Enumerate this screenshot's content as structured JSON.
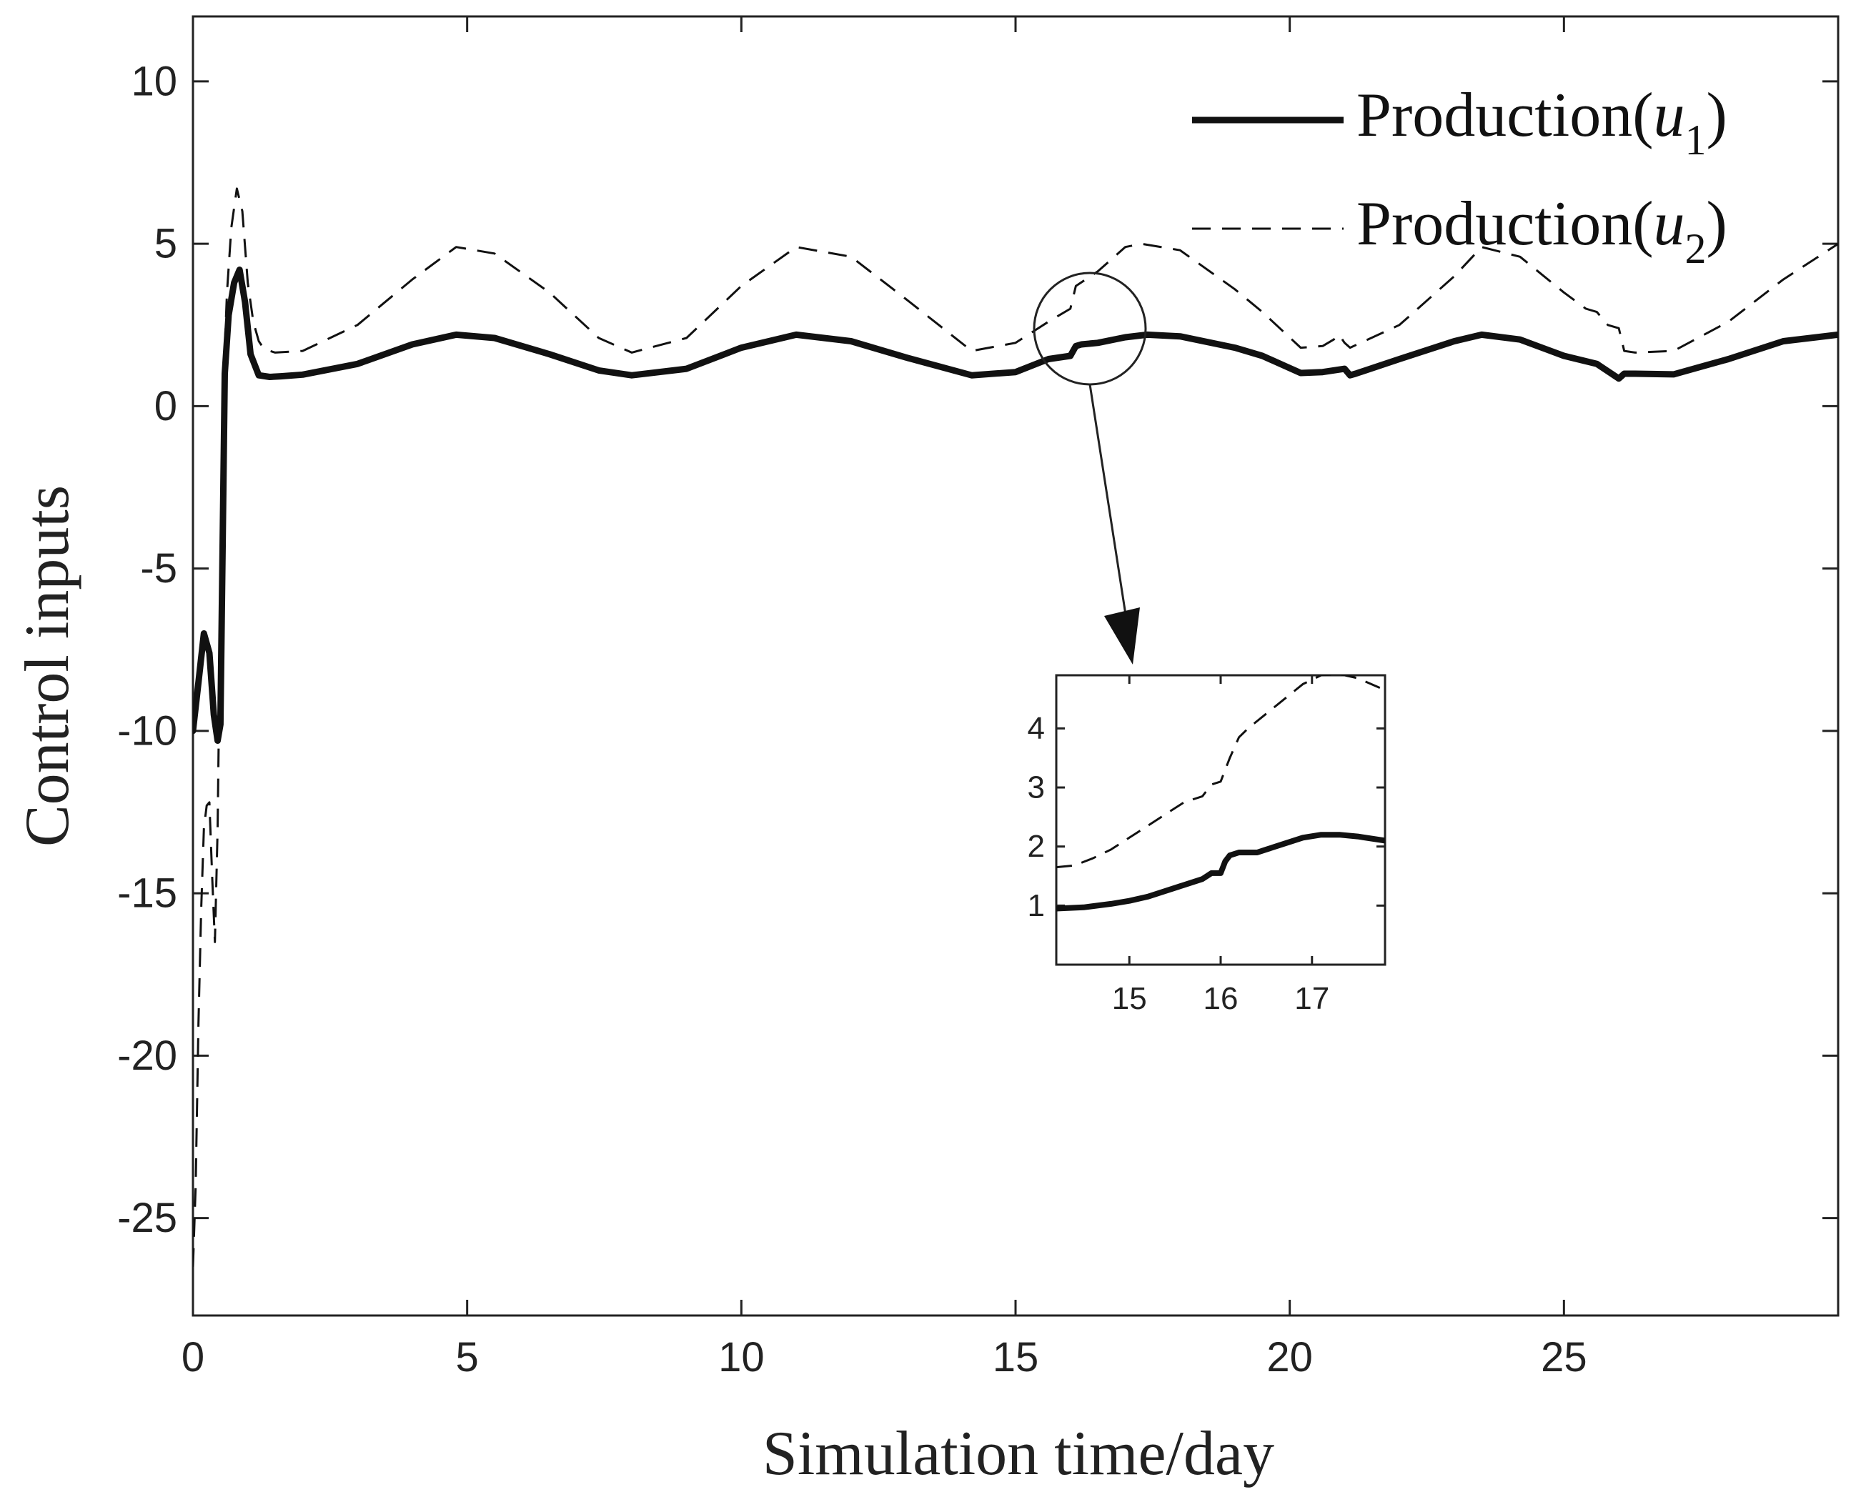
{
  "chart_data": {
    "type": "line",
    "xlabel": "Simulation time/day",
    "ylabel": "Control inputs",
    "xlim": [
      0,
      30
    ],
    "ylim": [
      -28,
      12
    ],
    "xticks": [
      0,
      5,
      10,
      15,
      20,
      25
    ],
    "xtick_labels": [
      "0",
      "5",
      "10",
      "15",
      "20",
      "25"
    ],
    "yticks": [
      10,
      5,
      0,
      -5,
      -10,
      -15,
      -20,
      -25
    ],
    "ytick_labels": [
      "10",
      "5",
      "0",
      "-5",
      "-10",
      "-15",
      "-20",
      "-25"
    ],
    "grid": false,
    "legend_position": "top-right",
    "series": [
      {
        "name": "Production(u1)",
        "legend_main": "Production(",
        "legend_var": "u",
        "legend_sub": "1",
        "legend_close": ")",
        "style": "solid",
        "color": "#111111",
        "x": [
          0,
          0.1,
          0.2,
          0.3,
          0.38,
          0.45,
          0.5,
          0.58,
          0.65,
          0.75,
          0.85,
          0.95,
          1.05,
          1.2,
          1.4,
          1.6,
          2,
          3,
          4,
          4.8,
          5.5,
          6.5,
          7.4,
          8.0,
          9,
          10,
          11,
          12,
          13,
          14.2,
          15,
          15.6,
          16.0,
          16.1,
          16.2,
          16.5,
          17.0,
          17.4,
          18,
          19,
          19.5,
          20.2,
          20.6,
          21.0,
          21.1,
          21.2,
          22,
          23,
          23.5,
          24.2,
          25,
          25.6,
          26.0,
          26.1,
          26.3,
          27,
          28,
          29,
          30
        ],
        "y": [
          -10,
          -8.5,
          -7,
          -7.6,
          -9.5,
          -10.3,
          -9.8,
          1,
          2.8,
          3.8,
          4.2,
          3.2,
          1.6,
          0.95,
          0.9,
          0.92,
          0.97,
          1.3,
          1.9,
          2.2,
          2.1,
          1.6,
          1.1,
          0.95,
          1.15,
          1.8,
          2.2,
          2.0,
          1.5,
          0.95,
          1.05,
          1.45,
          1.55,
          1.85,
          1.9,
          1.95,
          2.12,
          2.2,
          2.15,
          1.8,
          1.55,
          1.02,
          1.05,
          1.15,
          0.95,
          1.0,
          1.45,
          2.0,
          2.2,
          2.05,
          1.55,
          1.3,
          0.85,
          1.0,
          1.0,
          0.98,
          1.45,
          2.0,
          2.2
        ]
      },
      {
        "name": "Production(u2)",
        "legend_main": "Production(",
        "legend_var": "u",
        "legend_sub": "2",
        "legend_close": ")",
        "style": "dashed",
        "color": "#111111",
        "x": [
          0,
          0.05,
          0.1,
          0.15,
          0.2,
          0.25,
          0.3,
          0.35,
          0.4,
          0.45,
          0.5,
          0.55,
          0.62,
          0.7,
          0.8,
          0.9,
          1.0,
          1.1,
          1.2,
          1.3,
          1.5,
          2,
          3,
          4,
          4.8,
          5.5,
          6.5,
          7.4,
          8.0,
          9,
          10,
          11,
          12,
          13,
          14.2,
          15,
          15.6,
          16.0,
          16.1,
          16.5,
          17.0,
          17.3,
          18,
          19,
          19.5,
          20.2,
          20.6,
          20.8,
          20.9,
          21.0,
          21.1,
          22,
          23,
          23.5,
          24.2,
          25,
          25.4,
          25.6,
          25.8,
          26.0,
          26.1,
          26.3,
          27,
          28,
          29,
          30
        ],
        "y": [
          -26.5,
          -24,
          -19,
          -15.5,
          -13,
          -12.3,
          -12.2,
          -14.5,
          -16.5,
          -13,
          -6,
          0.5,
          3.5,
          5.5,
          6.7,
          6.0,
          3.8,
          2.6,
          2.0,
          1.75,
          1.65,
          1.7,
          2.5,
          3.9,
          4.9,
          4.7,
          3.5,
          2.1,
          1.65,
          2.1,
          3.7,
          4.9,
          4.6,
          3.3,
          1.7,
          1.95,
          2.6,
          3.0,
          3.7,
          4.15,
          4.9,
          5.0,
          4.8,
          3.6,
          2.9,
          1.8,
          1.85,
          2.05,
          2.2,
          1.95,
          1.8,
          2.5,
          4.0,
          4.9,
          4.6,
          3.5,
          3.0,
          2.9,
          2.5,
          2.4,
          1.7,
          1.65,
          1.7,
          2.6,
          3.9,
          5.0
        ]
      }
    ],
    "inset": {
      "xlim": [
        14.2,
        17.8
      ],
      "ylim": [
        0,
        4.9
      ],
      "xticks": [
        15,
        16,
        17
      ],
      "xtick_labels": [
        "15",
        "16",
        "17"
      ],
      "yticks": [
        1,
        2,
        3,
        4
      ],
      "ytick_labels": [
        "1",
        "2",
        "3",
        "4"
      ],
      "series": [
        {
          "name": "Production(u1)",
          "style": "solid",
          "x": [
            14.2,
            14.5,
            14.8,
            15.0,
            15.2,
            15.4,
            15.6,
            15.8,
            15.9,
            16.0,
            16.05,
            16.1,
            16.2,
            16.3,
            16.4,
            16.5,
            16.7,
            16.9,
            17.1,
            17.3,
            17.5,
            17.8
          ],
          "y": [
            0.95,
            0.97,
            1.03,
            1.08,
            1.15,
            1.25,
            1.35,
            1.45,
            1.55,
            1.55,
            1.75,
            1.85,
            1.9,
            1.9,
            1.9,
            1.95,
            2.05,
            2.15,
            2.2,
            2.2,
            2.17,
            2.1
          ]
        },
        {
          "name": "Production(u2)",
          "style": "dashed",
          "x": [
            14.2,
            14.4,
            14.6,
            14.8,
            15.0,
            15.2,
            15.4,
            15.6,
            15.8,
            15.9,
            16.0,
            16.05,
            16.1,
            16.2,
            16.3,
            16.5,
            16.7,
            16.9,
            17.1,
            17.3,
            17.5,
            17.8
          ],
          "y": [
            1.65,
            1.68,
            1.8,
            1.95,
            2.15,
            2.35,
            2.55,
            2.75,
            2.85,
            3.05,
            3.1,
            3.3,
            3.5,
            3.85,
            4.0,
            4.25,
            4.5,
            4.75,
            4.9,
            4.92,
            4.85,
            4.65
          ]
        }
      ]
    }
  }
}
